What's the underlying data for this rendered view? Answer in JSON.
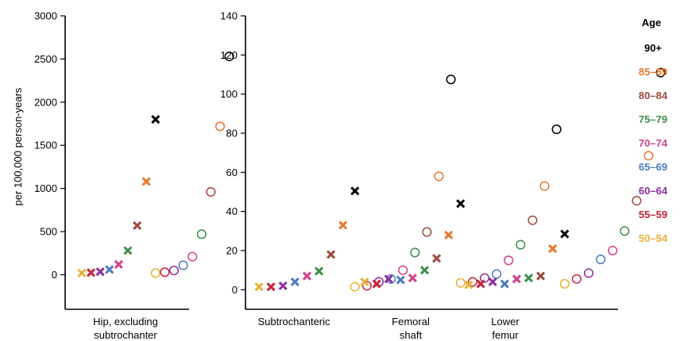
{
  "legend": {
    "title": "Age",
    "items": [
      {
        "label": "90+",
        "color": "#000000"
      },
      {
        "label": "85–89",
        "color": "#e8762b"
      },
      {
        "label": "80–84",
        "color": "#9e4a3e"
      },
      {
        "label": "75–79",
        "color": "#3e8e4a"
      },
      {
        "label": "70–74",
        "color": "#d63f8c"
      },
      {
        "label": "65–69",
        "color": "#4a7bc0"
      },
      {
        "label": "60–64",
        "color": "#8b2fa0"
      },
      {
        "label": "55–59",
        "color": "#c8233a"
      },
      {
        "label": "50–54",
        "color": "#e6b23a"
      }
    ]
  },
  "chart_data": [
    {
      "type": "scatter",
      "ylabel": "per 100,000 person-years",
      "ylim": [
        -400,
        3000
      ],
      "yticks": [
        0,
        500,
        1000,
        1500,
        2000,
        2500,
        3000
      ],
      "groups": [
        {
          "label_lines": [
            "Hip, excluding",
            "subtrochanter"
          ],
          "series": [
            {
              "sex": "male",
              "marker": "x",
              "values": [
                20,
                25,
                35,
                60,
                120,
                280,
                570,
                1080,
                1800
              ]
            },
            {
              "sex": "female",
              "marker": "o",
              "values": [
                20,
                30,
                50,
                110,
                210,
                470,
                960,
                1720,
                2530
              ]
            }
          ]
        }
      ]
    },
    {
      "type": "scatter",
      "ylim": [
        -10,
        140
      ],
      "yticks": [
        0,
        20,
        40,
        60,
        80,
        100,
        120,
        140
      ],
      "groups": [
        {
          "label_lines": [
            "Subtrochanteric"
          ],
          "series": [
            {
              "sex": "male",
              "marker": "x",
              "values": [
                1.5,
                1.5,
                2,
                4,
                7,
                9.5,
                18,
                33,
                50.5
              ]
            },
            {
              "sex": "female",
              "marker": "o",
              "values": [
                1.5,
                2,
                4,
                5.5,
                10,
                19,
                29.5,
                58,
                107.5
              ]
            }
          ]
        },
        {
          "label_lines": [
            "Femoral",
            "shaft"
          ],
          "series": [
            {
              "sex": "male",
              "marker": "x",
              "values": [
                4,
                3,
                5.5,
                5,
                6,
                10,
                16,
                28,
                44
              ]
            },
            {
              "sex": "female",
              "marker": "o",
              "values": [
                3.5,
                4,
                6,
                8,
                15,
                23,
                35.5,
                53,
                82
              ]
            }
          ]
        },
        {
          "label_lines": [
            "Lower",
            "femur"
          ],
          "series": [
            {
              "sex": "male",
              "marker": "x",
              "values": [
                2.5,
                3,
                4,
                3,
                5.5,
                6,
                7,
                21,
                28.5
              ]
            },
            {
              "sex": "female",
              "marker": "o",
              "values": [
                3,
                5.5,
                8.5,
                15.5,
                20,
                30,
                45.5,
                68.5,
                111
              ]
            }
          ]
        }
      ]
    }
  ]
}
